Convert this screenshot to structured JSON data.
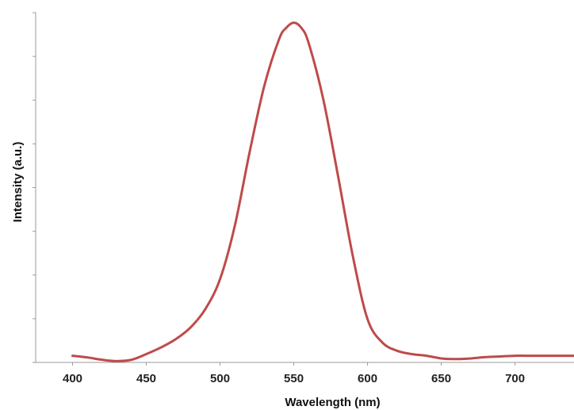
{
  "chart_data": {
    "type": "line",
    "title": "",
    "xlabel": "Wavelength (nm)",
    "ylabel": "Intensity (a.u.)",
    "xlim": [
      375,
      740
    ],
    "ylim": [
      0,
      1.05
    ],
    "x_ticks": [
      400,
      450,
      500,
      550,
      600,
      650,
      700
    ],
    "y_ticks_labeled": false,
    "grid": false,
    "legend": "none",
    "series": [
      {
        "color": "#bf4a4a",
        "x": [
          400,
          410,
          420,
          430,
          440,
          450,
          460,
          470,
          480,
          490,
          500,
          510,
          520,
          530,
          540,
          545,
          550,
          555,
          560,
          570,
          580,
          590,
          600,
          610,
          620,
          630,
          640,
          650,
          660,
          670,
          680,
          690,
          700,
          710,
          720,
          730,
          740
        ],
        "y": [
          0.02,
          0.015,
          0.008,
          0.004,
          0.008,
          0.025,
          0.045,
          0.07,
          0.105,
          0.16,
          0.25,
          0.41,
          0.63,
          0.83,
          0.97,
          1.005,
          1.02,
          1.005,
          0.96,
          0.79,
          0.56,
          0.32,
          0.13,
          0.06,
          0.035,
          0.025,
          0.02,
          0.012,
          0.01,
          0.012,
          0.016,
          0.018,
          0.02,
          0.02,
          0.02,
          0.02,
          0.02
        ]
      }
    ]
  }
}
